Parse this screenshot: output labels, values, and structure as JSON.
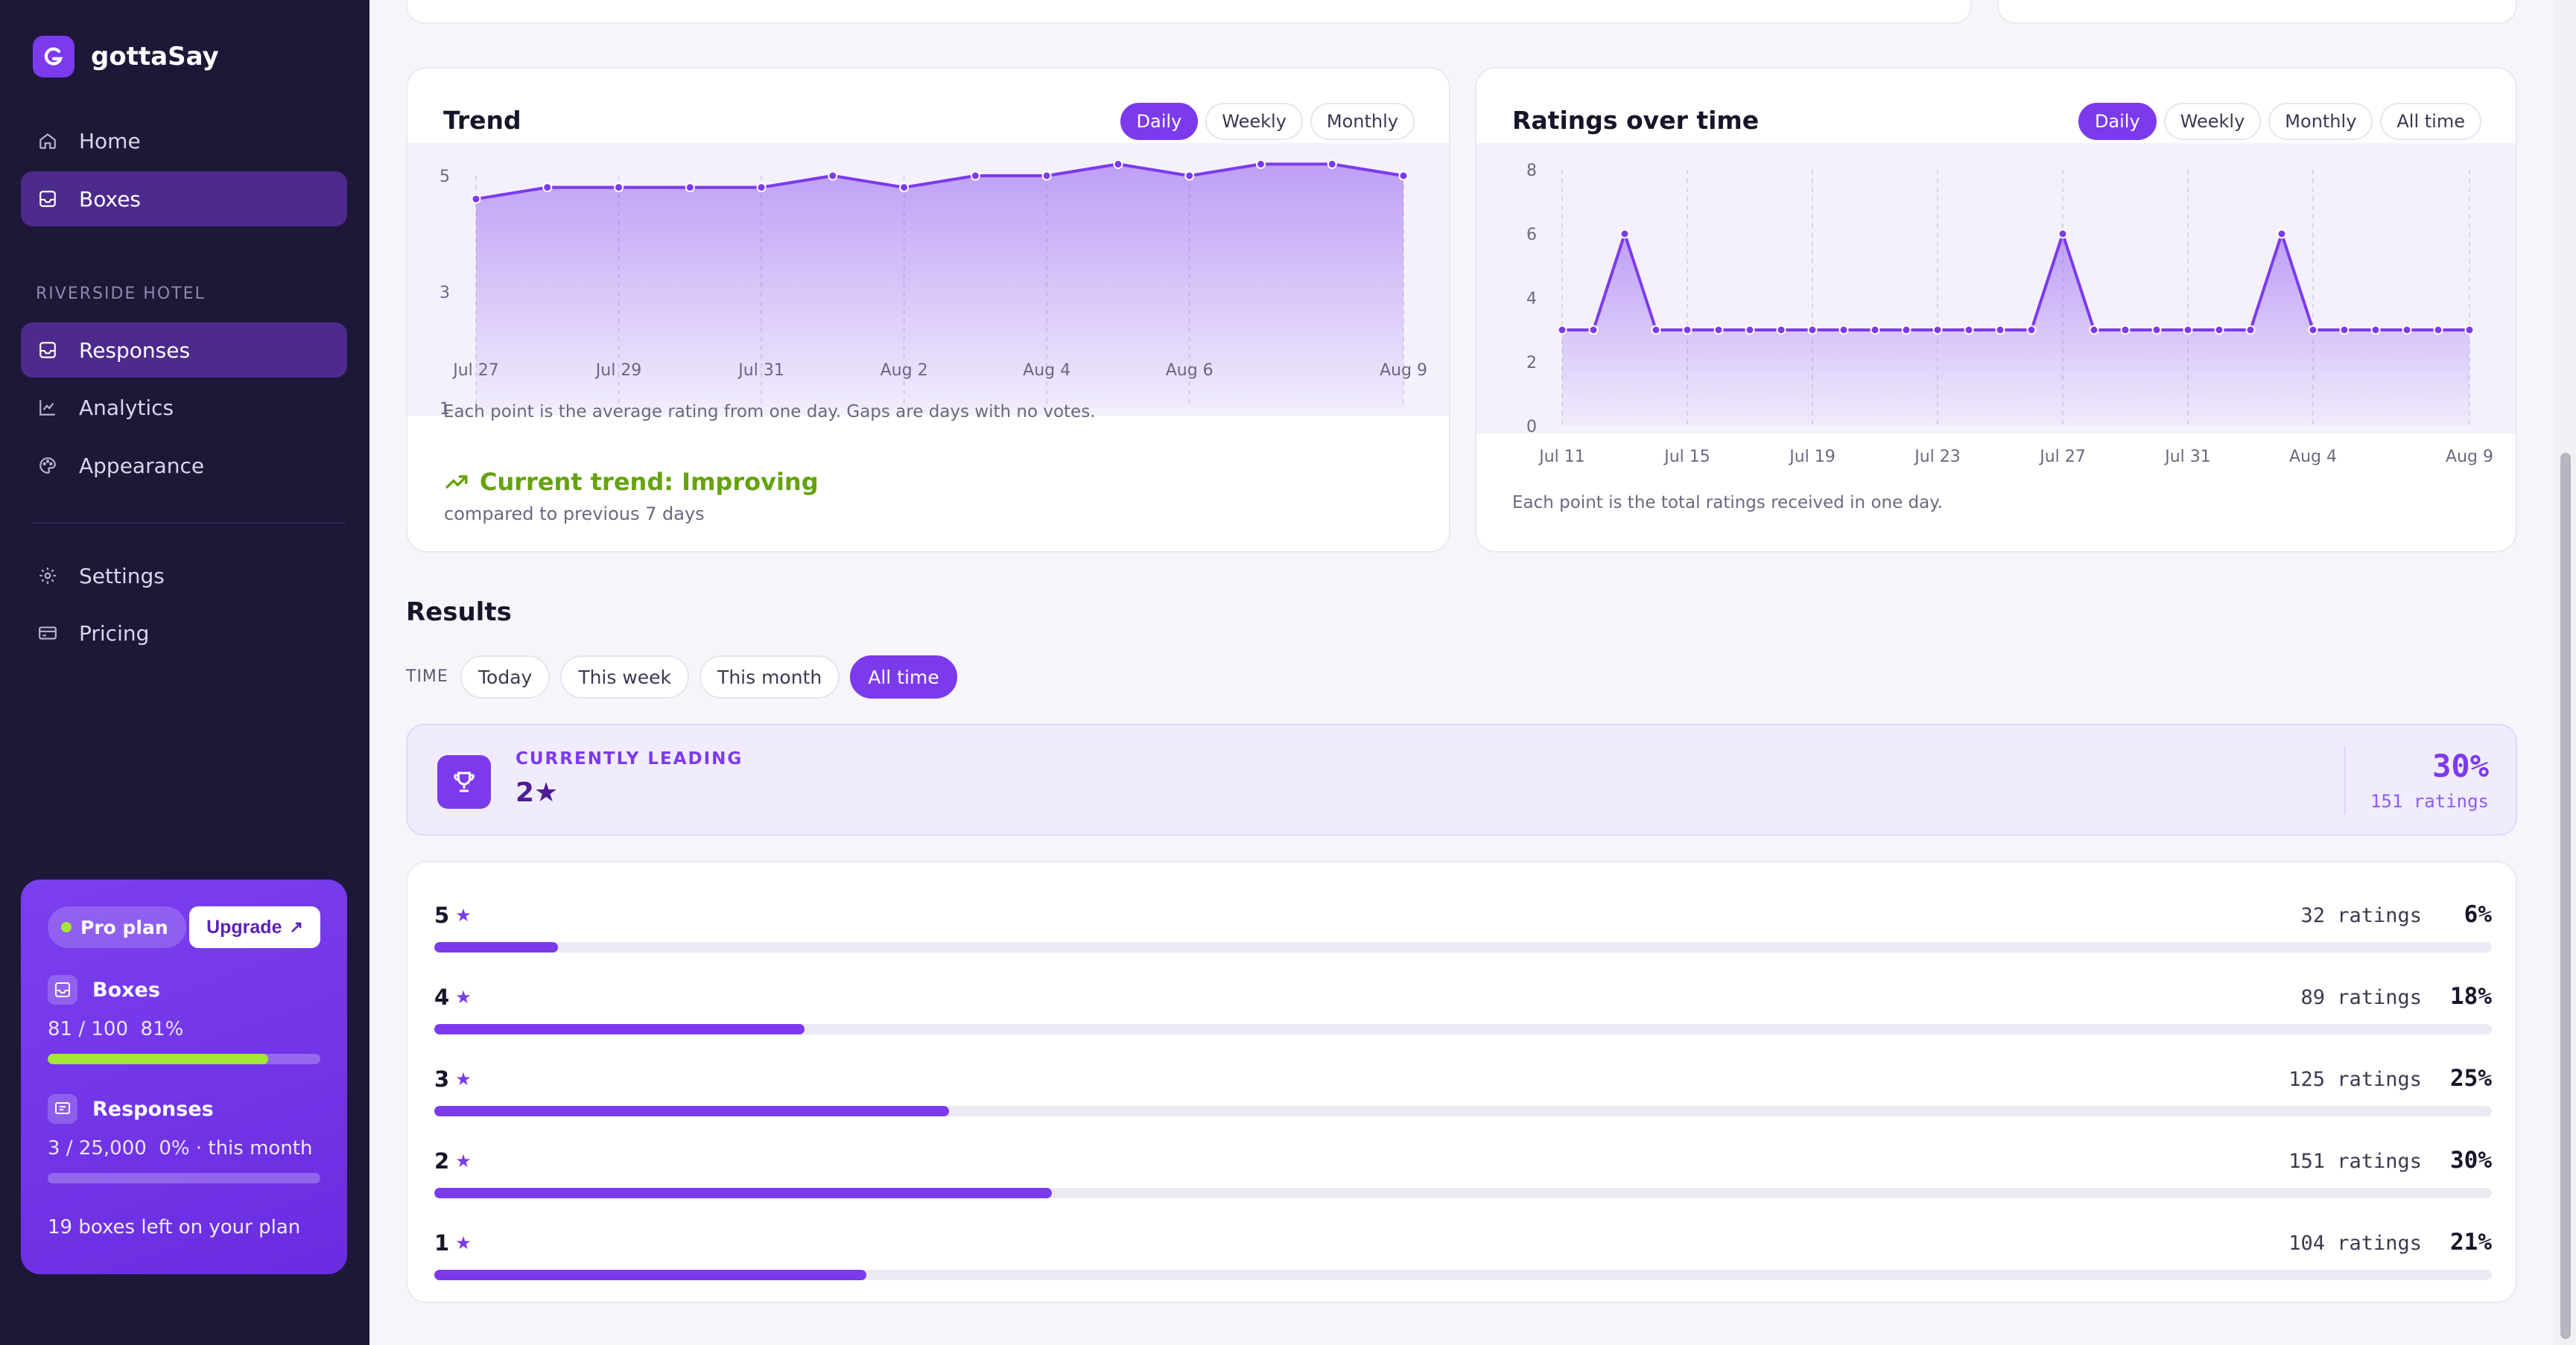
{
  "app": {
    "name": "gottaSay"
  },
  "sidebar": {
    "nav_top": [
      {
        "label": "Home",
        "icon": "home-icon"
      },
      {
        "label": "Boxes",
        "icon": "inbox-icon",
        "active": true
      }
    ],
    "section_label": "RIVERSIDE HOTEL",
    "nav_section": [
      {
        "label": "Responses",
        "icon": "inbox-icon",
        "active": true
      },
      {
        "label": "Analytics",
        "icon": "chart-icon"
      },
      {
        "label": "Appearance",
        "icon": "palette-icon"
      }
    ],
    "nav_bottom": [
      {
        "label": "Settings",
        "icon": "gear-icon"
      },
      {
        "label": "Pricing",
        "icon": "card-icon"
      }
    ],
    "plan": {
      "badge": "Pro plan",
      "upgrade_label": "Upgrade",
      "boxes_title": "Boxes",
      "boxes_usage": "81 / 100",
      "boxes_pct": "81%",
      "boxes_fraction": 0.81,
      "responses_title": "Responses",
      "responses_usage": "3 / 25,000",
      "responses_pct": "0% · this month",
      "responses_fraction": 0.0,
      "left_text": "19 boxes left on your plan"
    }
  },
  "trend_card": {
    "title": "Trend",
    "tabs": [
      "Daily",
      "Weekly",
      "Monthly"
    ],
    "active_tab": "Daily",
    "note": "Each point is the average rating from one day. Gaps are days with no votes.",
    "status": "Current trend: Improving",
    "status_sub": "compared to previous 7 days"
  },
  "ratings_card": {
    "title": "Ratings over time",
    "tabs": [
      "Daily",
      "Weekly",
      "Monthly",
      "All time"
    ],
    "active_tab": "Daily",
    "note": "Each point is the total ratings received in one day."
  },
  "chart_data": [
    {
      "type": "area",
      "title": "Trend",
      "x": [
        "Jul 27",
        "Jul 28",
        "Jul 29",
        "Jul 30",
        "Jul 31",
        "Aug 1",
        "Aug 2",
        "Aug 3",
        "Aug 4",
        "Aug 5",
        "Aug 6",
        "Aug 7",
        "Aug 8",
        "Aug 9"
      ],
      "x_tick_labels": [
        "Jul 27",
        "Jul 29",
        "Jul 31",
        "Aug 2",
        "Aug 4",
        "Aug 6",
        "Aug 9"
      ],
      "y_ticks": [
        1,
        3,
        5
      ],
      "ylim": [
        1,
        5
      ],
      "values": [
        4.6,
        4.8,
        4.8,
        4.8,
        4.8,
        5.0,
        4.8,
        5.0,
        5.0,
        5.2,
        5.0,
        5.2,
        5.2,
        5.0
      ],
      "color": "#7c3aed",
      "grid": false
    },
    {
      "type": "area",
      "title": "Ratings over time",
      "x": [
        "Jul 11",
        "Jul 12",
        "Jul 13",
        "Jul 14",
        "Jul 15",
        "Jul 16",
        "Jul 17",
        "Jul 18",
        "Jul 19",
        "Jul 20",
        "Jul 21",
        "Jul 22",
        "Jul 23",
        "Jul 24",
        "Jul 25",
        "Jul 26",
        "Jul 27",
        "Jul 28",
        "Jul 29",
        "Jul 30",
        "Jul 31",
        "Aug 1",
        "Aug 2",
        "Aug 3",
        "Aug 4",
        "Aug 5",
        "Aug 6",
        "Aug 7",
        "Aug 8",
        "Aug 9"
      ],
      "x_tick_labels": [
        "Jul 11",
        "Jul 15",
        "Jul 19",
        "Jul 23",
        "Jul 27",
        "Jul 31",
        "Aug 4",
        "Aug 9"
      ],
      "y_ticks": [
        0,
        2,
        4,
        6,
        8
      ],
      "ylim": [
        0,
        8
      ],
      "values": [
        3,
        3,
        6,
        3,
        3,
        3,
        3,
        3,
        3,
        3,
        3,
        3,
        3,
        3,
        3,
        3,
        6,
        3,
        3,
        3,
        3,
        3,
        3,
        6,
        3,
        3,
        3,
        3,
        3,
        3
      ],
      "color": "#7c3aed",
      "grid": true
    }
  ],
  "results": {
    "title": "Results",
    "time_label": "TIME",
    "filters": [
      "Today",
      "This week",
      "This month",
      "All time"
    ],
    "active_filter": "All time",
    "leading": {
      "label": "CURRENTLY LEADING",
      "value": "2★",
      "pct": "30%",
      "count": "151 ratings"
    },
    "rows": [
      {
        "stars": "5",
        "count": "32 ratings",
        "pct": "6%",
        "fraction": 0.06
      },
      {
        "stars": "4",
        "count": "89 ratings",
        "pct": "18%",
        "fraction": 0.18
      },
      {
        "stars": "3",
        "count": "125 ratings",
        "pct": "25%",
        "fraction": 0.25
      },
      {
        "stars": "2",
        "count": "151 ratings",
        "pct": "30%",
        "fraction": 0.3
      },
      {
        "stars": "1",
        "count": "104 ratings",
        "pct": "21%",
        "fraction": 0.21
      }
    ]
  }
}
